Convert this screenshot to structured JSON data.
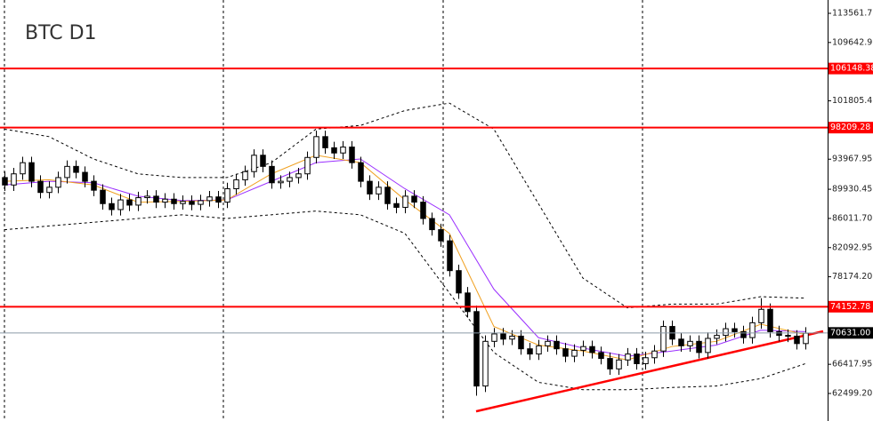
{
  "chart_data": {
    "type": "candlestick",
    "title": "BTC D1",
    "xlim": [
      -0.5,
      92.5
    ],
    "ylim": [
      58801,
      115351
    ],
    "yticks": [
      {
        "value": 113561.7,
        "label": "113561.70"
      },
      {
        "value": 109642.95,
        "label": "109642.95"
      },
      {
        "value": 101805.45,
        "label": "101805.45"
      },
      {
        "value": 93967.95,
        "label": "93967.95"
      },
      {
        "value": 89930.45,
        "label": "89930.45"
      },
      {
        "value": 86011.7,
        "label": "86011.70"
      },
      {
        "value": 82092.95,
        "label": "82092.95"
      },
      {
        "value": 78174.2,
        "label": "78174.20"
      },
      {
        "value": 66417.95,
        "label": "66417.95"
      },
      {
        "value": 62499.2,
        "label": "62499.20"
      }
    ],
    "up_color": "#ffffff",
    "down_color": "#000000",
    "open": [
      91500,
      90500,
      92000,
      93500,
      91000,
      89500,
      90200,
      91500,
      93000,
      92200,
      91000,
      89800,
      88000,
      87200,
      88500,
      87800,
      88800,
      89000,
      88200,
      88600,
      88000,
      88300,
      87900,
      88400,
      88900,
      88200,
      90000,
      91200,
      92300,
      94500,
      93000,
      90800,
      91000,
      91500,
      92000,
      94200,
      97000,
      95500,
      94800,
      95600,
      93500,
      91000,
      89300,
      90200,
      88000,
      87500,
      89000,
      88200,
      86000,
      84500,
      83000,
      79000,
      76000,
      73500,
      63500,
      69500,
      70500,
      69800,
      70200,
      68500,
      67800,
      68900,
      69500,
      68500,
      67500,
      68300,
      68800,
      68000,
      67200,
      65800,
      67000,
      67800,
      66500,
      67300,
      68200,
      71500,
      69800,
      68900,
      69500,
      68000,
      69900,
      70300,
      71200,
      70800,
      70000,
      72000,
      73800,
      70800,
      70300,
      70200,
      69200
    ],
    "high": [
      92300,
      92800,
      94300,
      94300,
      91800,
      91000,
      92300,
      93800,
      93800,
      93000,
      91800,
      90600,
      88800,
      89300,
      89300,
      89600,
      89800,
      89800,
      89400,
      89400,
      89100,
      89100,
      89200,
      89700,
      89700,
      90800,
      92000,
      93100,
      95300,
      95300,
      93800,
      91800,
      92300,
      92800,
      95000,
      97800,
      97800,
      96300,
      96400,
      96400,
      94300,
      91800,
      91000,
      91000,
      88800,
      89800,
      89800,
      89000,
      86800,
      85300,
      83800,
      79800,
      76800,
      74300,
      70300,
      71300,
      71300,
      71000,
      71000,
      69300,
      69700,
      70300,
      70300,
      69300,
      69100,
      69600,
      69600,
      68800,
      68000,
      67800,
      68600,
      68600,
      68100,
      69000,
      72300,
      72300,
      70600,
      70300,
      70300,
      70700,
      71100,
      72000,
      72000,
      71600,
      72800,
      75300,
      74600,
      71600,
      71100,
      71000,
      71400
    ],
    "low": [
      89700,
      89700,
      91200,
      90200,
      88700,
      88700,
      89400,
      90700,
      91400,
      90200,
      89000,
      87200,
      86400,
      86400,
      87000,
      87000,
      88000,
      87400,
      87400,
      87200,
      87200,
      87100,
      87100,
      87600,
      87400,
      87400,
      89200,
      90400,
      91500,
      92200,
      90000,
      90000,
      90200,
      90700,
      91200,
      93400,
      94700,
      94000,
      94000,
      92700,
      90200,
      88500,
      88500,
      87200,
      86700,
      86700,
      87400,
      85200,
      83700,
      82200,
      78200,
      75200,
      72700,
      62200,
      62700,
      68700,
      69000,
      69000,
      67700,
      67000,
      67000,
      68100,
      67700,
      66700,
      66700,
      67500,
      67200,
      66400,
      65000,
      65000,
      66200,
      65700,
      65700,
      66500,
      67400,
      69000,
      68100,
      68100,
      67200,
      67200,
      69100,
      69500,
      70000,
      69200,
      69200,
      71200,
      70000,
      69500,
      69400,
      68400,
      68400
    ],
    "close": [
      90500,
      92000,
      93500,
      91000,
      89500,
      90200,
      91500,
      93000,
      92200,
      91000,
      89800,
      88000,
      87200,
      88500,
      87800,
      88800,
      89000,
      88200,
      88600,
      88000,
      88300,
      87900,
      88400,
      88900,
      88200,
      90000,
      91200,
      92300,
      94500,
      93000,
      90800,
      91000,
      91500,
      92000,
      94200,
      97000,
      95500,
      94800,
      95600,
      93500,
      91000,
      89300,
      90200,
      88000,
      87500,
      89000,
      88200,
      86000,
      84500,
      83000,
      79000,
      76000,
      73500,
      63500,
      69500,
      70500,
      69800,
      70200,
      68500,
      67800,
      68900,
      69500,
      68500,
      67500,
      68300,
      68800,
      68000,
      67200,
      65800,
      67000,
      67800,
      66500,
      67300,
      68200,
      71500,
      69800,
      68900,
      69500,
      68000,
      69900,
      70300,
      71200,
      70800,
      70000,
      72000,
      73800,
      70800,
      70300,
      70200,
      69200,
      70600
    ],
    "overlays": [
      {
        "color": "#000000",
        "dash": true,
        "x": [
          0,
          5,
          10,
          15,
          20,
          25,
          30,
          35,
          40,
          45,
          50,
          55,
          60,
          65,
          70,
          75,
          80,
          85,
          90
        ],
        "values": [
          98000,
          97000,
          94000,
          92000,
          91500,
          91500,
          93500,
          98000,
          98500,
          100500,
          101500,
          98000,
          88000,
          78000,
          74000,
          74500,
          74500,
          75500,
          75300
        ]
      },
      {
        "color": "#000000",
        "dash": true,
        "x": [
          0,
          5,
          10,
          15,
          20,
          25,
          30,
          35,
          40,
          45,
          50,
          55,
          60,
          65,
          70,
          75,
          80,
          85,
          90
        ],
        "values": [
          84500,
          85000,
          85500,
          86000,
          86500,
          86000,
          86500,
          87000,
          86500,
          84000,
          76000,
          68000,
          64000,
          63000,
          63000,
          63300,
          63500,
          64500,
          66500
        ]
      },
      {
        "color": "#9b30ff",
        "dash": false,
        "x": [
          0,
          5,
          10,
          15,
          20,
          25,
          30,
          35,
          40,
          45,
          50,
          55,
          60,
          65,
          70,
          75,
          80,
          85,
          90
        ],
        "values": [
          90500,
          91000,
          90800,
          89000,
          88400,
          88500,
          91000,
          93500,
          94000,
          90000,
          86500,
          76500,
          70000,
          68600,
          67500,
          68200,
          69000,
          71000,
          70800
        ]
      },
      {
        "color": "#f0a020",
        "dash": false,
        "x": [
          0,
          5,
          10,
          15,
          20,
          25,
          30,
          35,
          40,
          45,
          50,
          55,
          60,
          65,
          70,
          75,
          80,
          85,
          90
        ],
        "values": [
          91000,
          91200,
          90500,
          88200,
          88300,
          88500,
          92000,
          94500,
          93500,
          88500,
          84000,
          71500,
          69000,
          68200,
          67000,
          68800,
          69500,
          71800,
          70400
        ]
      },
      {
        "color": "#ff0000",
        "dash": false,
        "width": 2.5,
        "x": [
          53,
          92
        ],
        "values": [
          60100,
          70850
        ]
      }
    ],
    "levels": [
      106148.38,
      98209.28,
      74152.78
    ],
    "level_color": "#ff0000",
    "current_price": {
      "value": 70631,
      "label": "70631.00"
    }
  }
}
